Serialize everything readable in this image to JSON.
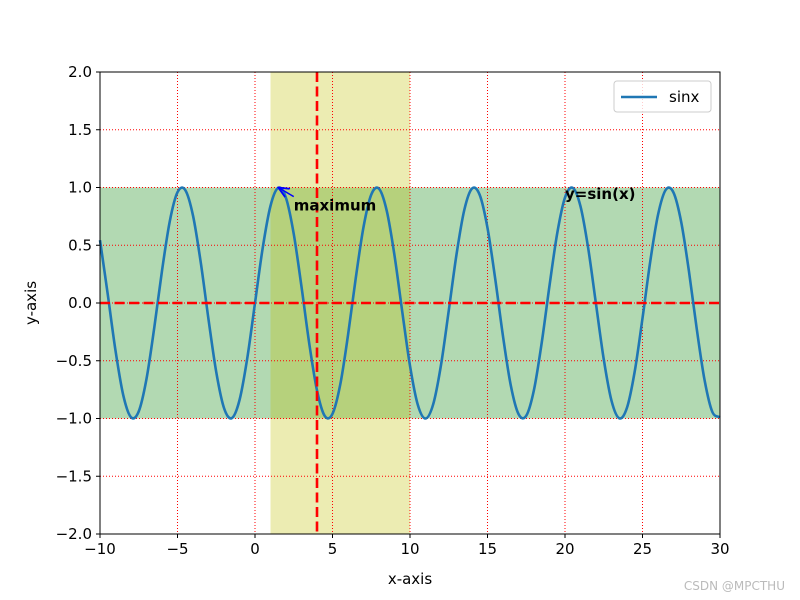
{
  "chart_data": {
    "type": "line",
    "xlabel": "x-axis",
    "ylabel": "y-axis",
    "x": [
      -10,
      -9.5,
      -9,
      -8.5,
      -8,
      -7.5,
      -7,
      -6.5,
      -6,
      -5.5,
      -5,
      -4.5,
      -4,
      -3.5,
      -3,
      -2.5,
      -2,
      -1.5,
      -1,
      -0.5,
      0,
      0.5,
      1,
      1.5,
      2,
      2.5,
      3,
      3.5,
      4,
      4.5,
      5,
      5.5,
      6,
      6.5,
      7,
      7.5,
      8,
      8.5,
      9,
      9.5,
      10,
      10.5,
      11,
      11.5,
      12,
      12.5,
      13,
      13.5,
      14,
      14.5,
      15,
      15.5,
      16,
      16.5,
      17,
      17.5,
      18,
      18.5,
      19,
      19.5,
      20,
      20.5,
      21,
      21.5,
      22,
      22.5,
      23,
      23.5,
      24,
      24.5,
      25,
      25.5,
      26,
      26.5,
      27,
      27.5,
      28,
      28.5,
      29,
      29.5,
      30
    ],
    "series": [
      {
        "name": "sinx",
        "color": "#1f77b4",
        "values": [
          0.544,
          0.075,
          -0.412,
          -0.798,
          -0.989,
          -0.938,
          -0.657,
          -0.215,
          0.279,
          0.706,
          0.959,
          0.978,
          0.757,
          0.351,
          -0.141,
          -0.598,
          -0.909,
          -0.997,
          -0.841,
          -0.479,
          0,
          0.479,
          0.841,
          0.997,
          0.909,
          0.598,
          0.141,
          -0.351,
          -0.757,
          -0.978,
          -0.959,
          -0.706,
          -0.279,
          0.215,
          0.657,
          0.938,
          0.989,
          0.798,
          0.412,
          -0.075,
          -0.544,
          -0.88,
          -1.0,
          -0.875,
          -0.537,
          -0.066,
          0.42,
          0.804,
          0.991,
          0.935,
          0.65,
          0.207,
          -0.288,
          -0.712,
          -0.961,
          -0.976,
          -0.751,
          -0.342,
          0.15,
          0.605,
          0.913,
          0.997,
          0.837,
          0.471,
          -0.009,
          -0.487,
          -0.846,
          -0.998,
          -0.906,
          -0.591,
          -0.132,
          0.36,
          0.763,
          0.98,
          0.956,
          0.699,
          0.271,
          -0.224,
          -0.664,
          -0.941,
          -0.988
        ]
      }
    ],
    "xlim": [
      -10,
      30
    ],
    "xticks": [
      {
        "value": -10,
        "label": "−10"
      },
      {
        "value": -5,
        "label": "−5"
      },
      0,
      5,
      10,
      15,
      20,
      25,
      30
    ],
    "ylim": [
      -2,
      2
    ],
    "yticks": [
      {
        "value": -2,
        "label": "−2.0"
      },
      {
        "value": -1.5,
        "label": "−1.5"
      },
      {
        "value": -1,
        "label": "−1.0"
      },
      {
        "value": -0.5,
        "label": "−0.5"
      },
      {
        "value": 0,
        "label": "0.0"
      },
      {
        "value": 0.5,
        "label": "0.5"
      },
      {
        "value": 1,
        "label": "1.0"
      },
      {
        "value": 1.5,
        "label": "1.5"
      },
      {
        "value": 2,
        "label": "2.0"
      }
    ],
    "grid": true,
    "grid_color": "#ff0000",
    "hspan": {
      "ymin": -1,
      "ymax": 1,
      "color": "#008000",
      "alpha": 0.3
    },
    "vspan": {
      "xmin": 1,
      "xmax": 10,
      "color": "#bfbf00",
      "alpha": 0.3
    },
    "vline": {
      "x": 4,
      "color": "#ff0000"
    },
    "hline": {
      "y": 0,
      "color": "#ff0000"
    },
    "annotations": [
      {
        "text": "maximum",
        "xy": [
          1.5,
          1
        ],
        "xytext": [
          2.5,
          0.8
        ],
        "color": "#0000ff"
      },
      {
        "text": "y=sin(x)",
        "xytext": [
          20,
          0.9
        ],
        "color": "#0000ff"
      }
    ],
    "legend": "upper right",
    "watermark": "CSDN @MPCTHU"
  }
}
